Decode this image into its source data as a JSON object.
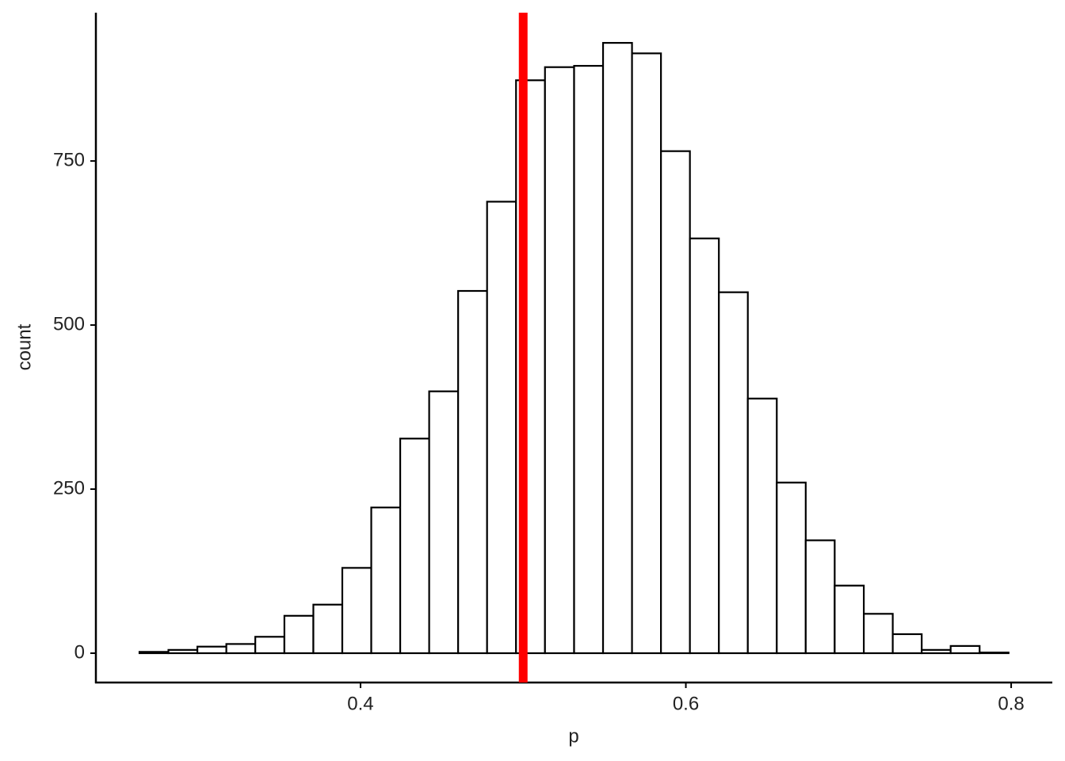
{
  "chart_data": {
    "type": "histogram",
    "x_label": "p",
    "y_label": "count",
    "bins": [
      0.2641,
      0.2819,
      0.2997,
      0.3175,
      0.3353,
      0.3532,
      0.371,
      0.3888,
      0.4066,
      0.4244,
      0.4422,
      0.46,
      0.4778,
      0.4956,
      0.5134,
      0.5313,
      0.5491,
      0.5669,
      0.5847,
      0.6025,
      0.6203,
      0.6381,
      0.6559,
      0.6737,
      0.6915,
      0.7094,
      0.7272,
      0.745,
      0.7628,
      0.7806,
      0.7984
    ],
    "values": [
      2,
      5,
      10,
      14,
      25,
      57,
      74,
      130,
      222,
      327,
      399,
      552,
      688,
      873,
      893,
      895,
      930,
      914,
      765,
      632,
      550,
      388,
      260,
      172,
      103,
      60,
      29,
      5,
      11,
      1
    ],
    "color": "#ffffff",
    "edge_color": "#000000",
    "vline": 0.5,
    "vline_color": "#ff0000",
    "xlim": [
      0.2373,
      0.8253
    ],
    "xticks": [
      0.4,
      0.6,
      0.8
    ],
    "ylim": [
      -44.7,
      976
    ],
    "yticks": [
      0,
      250,
      500,
      750
    ],
    "grid": false
  }
}
